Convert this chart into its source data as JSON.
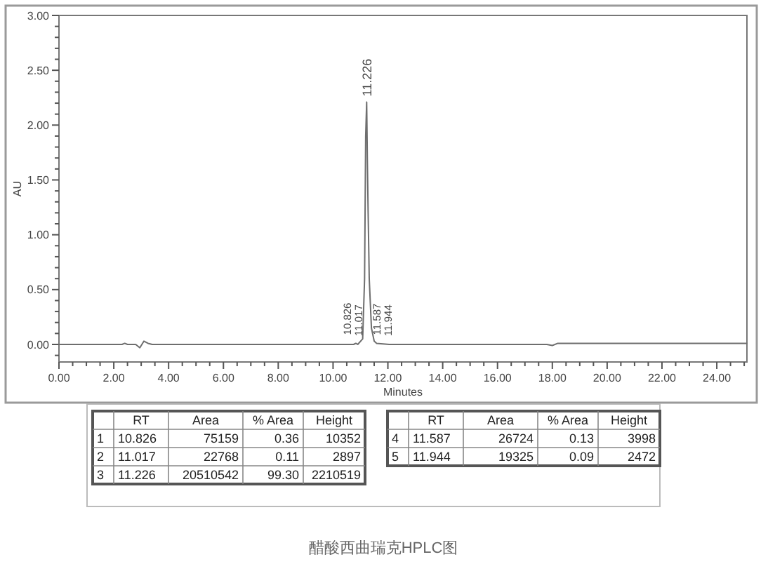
{
  "chart_data": [
    {
      "type": "line",
      "xlabel": "Minutes",
      "ylabel": "AU",
      "x": [
        0,
        2.3,
        2.4,
        2.5,
        2.8,
        2.95,
        3.1,
        3.25,
        3.4,
        10.6,
        10.75,
        10.83,
        10.9,
        11.08,
        11.15,
        11.19,
        11.226,
        11.25,
        11.28,
        11.32,
        11.4,
        11.5,
        11.59,
        12.05,
        17.8,
        18.0,
        18.2,
        25.1
      ],
      "series": [
        {
          "color": "#6e6e6e",
          "values": [
            0,
            0,
            0.01,
            0,
            0,
            -0.03,
            0.03,
            0.01,
            0,
            0,
            0,
            0.01,
            0,
            0.05,
            0.6,
            1.9,
            2.21,
            1.7,
            1.2,
            0.6,
            0.15,
            0.03,
            0.01,
            0,
            0,
            -0.01,
            0.01,
            0.01
          ]
        }
      ],
      "xlim": [
        0,
        25.1
      ],
      "ylim": [
        -0.16,
        3.0
      ],
      "xticks": [
        {
          "value": 0,
          "label": "0.00"
        },
        {
          "value": 0.5,
          "label": null
        },
        {
          "value": 1,
          "label": null
        },
        {
          "value": 1.5,
          "label": null
        },
        {
          "value": 2,
          "label": "2.00"
        },
        {
          "value": 2.5,
          "label": null
        },
        {
          "value": 3,
          "label": null
        },
        {
          "value": 3.5,
          "label": null
        },
        {
          "value": 4,
          "label": "4.00"
        },
        {
          "value": 4.5,
          "label": null
        },
        {
          "value": 5,
          "label": null
        },
        {
          "value": 5.5,
          "label": null
        },
        {
          "value": 6,
          "label": "6.00"
        },
        {
          "value": 6.5,
          "label": null
        },
        {
          "value": 7,
          "label": null
        },
        {
          "value": 7.5,
          "label": null
        },
        {
          "value": 8,
          "label": "8.00"
        },
        {
          "value": 8.5,
          "label": null
        },
        {
          "value": 9,
          "label": null
        },
        {
          "value": 9.5,
          "label": null
        },
        {
          "value": 10,
          "label": "10.00"
        },
        {
          "value": 10.5,
          "label": null
        },
        {
          "value": 11,
          "label": null
        },
        {
          "value": 11.5,
          "label": null
        },
        {
          "value": 12,
          "label": "12.00"
        },
        {
          "value": 12.5,
          "label": null
        },
        {
          "value": 13,
          "label": null
        },
        {
          "value": 13.5,
          "label": null
        },
        {
          "value": 14,
          "label": "14.00"
        },
        {
          "value": 14.5,
          "label": null
        },
        {
          "value": 15,
          "label": null
        },
        {
          "value": 15.5,
          "label": null
        },
        {
          "value": 16,
          "label": "16.00"
        },
        {
          "value": 16.5,
          "label": null
        },
        {
          "value": 17,
          "label": null
        },
        {
          "value": 17.5,
          "label": null
        },
        {
          "value": 18,
          "label": "18.00"
        },
        {
          "value": 18.5,
          "label": null
        },
        {
          "value": 19,
          "label": null
        },
        {
          "value": 19.5,
          "label": null
        },
        {
          "value": 20,
          "label": "20.00"
        },
        {
          "value": 20.5,
          "label": null
        },
        {
          "value": 21,
          "label": null
        },
        {
          "value": 21.5,
          "label": null
        },
        {
          "value": 22,
          "label": "22.00"
        },
        {
          "value": 22.5,
          "label": null
        },
        {
          "value": 23,
          "label": null
        },
        {
          "value": 23.5,
          "label": null
        },
        {
          "value": 24,
          "label": "24.00"
        },
        {
          "value": 24.5,
          "label": null
        },
        {
          "value": 25,
          "label": null
        }
      ],
      "yticks": [
        {
          "value": -0.1,
          "label": null
        },
        {
          "value": 0,
          "label": "0.00"
        },
        {
          "value": 0.1,
          "label": null
        },
        {
          "value": 0.2,
          "label": null
        },
        {
          "value": 0.3,
          "label": null
        },
        {
          "value": 0.4,
          "label": null
        },
        {
          "value": 0.5,
          "label": "0.50"
        },
        {
          "value": 0.6,
          "label": null
        },
        {
          "value": 0.7,
          "label": null
        },
        {
          "value": 0.8,
          "label": null
        },
        {
          "value": 0.9,
          "label": null
        },
        {
          "value": 1,
          "label": "1.00"
        },
        {
          "value": 1.1,
          "label": null
        },
        {
          "value": 1.2,
          "label": null
        },
        {
          "value": 1.3,
          "label": null
        },
        {
          "value": 1.4,
          "label": null
        },
        {
          "value": 1.5,
          "label": "1.50"
        },
        {
          "value": 1.6,
          "label": null
        },
        {
          "value": 1.7,
          "label": null
        },
        {
          "value": 1.8,
          "label": null
        },
        {
          "value": 1.9,
          "label": null
        },
        {
          "value": 2,
          "label": "2.00"
        },
        {
          "value": 2.1,
          "label": null
        },
        {
          "value": 2.2,
          "label": null
        },
        {
          "value": 2.3,
          "label": null
        },
        {
          "value": 2.4,
          "label": null
        },
        {
          "value": 2.5,
          "label": "2.50"
        },
        {
          "value": 2.6,
          "label": null
        },
        {
          "value": 2.7,
          "label": null
        },
        {
          "value": 2.8,
          "label": null
        },
        {
          "value": 2.9,
          "label": null
        },
        {
          "value": 3,
          "label": "3.00"
        }
      ],
      "annotations": [
        {
          "text": "10.826",
          "x": 10.826,
          "y": 0.01
        },
        {
          "text": "11.017",
          "x": 11.017,
          "y": 0
        },
        {
          "text": "11.226",
          "x": 11.226,
          "y": 2.21
        },
        {
          "text": "11.587",
          "x": 11.587,
          "y": 0.01
        },
        {
          "text": "11.944",
          "x": 11.944,
          "y": 0
        },
        "醋酸西曲瑞克HPLC图"
      ]
    },
    {
      "type": "other",
      "data_labels": true,
      "categories": [
        "RT",
        "Area",
        "% Area",
        "Height"
      ],
      "series": [
        {
          "name": "1",
          "values": [
            10.826,
            75159,
            0.36,
            10352
          ]
        },
        {
          "name": "2",
          "values": [
            11.017,
            22768,
            0.11,
            2897
          ]
        },
        {
          "name": "3",
          "values": [
            11.226,
            20510542,
            99.3,
            2210519
          ],
          "value_labels": [
            "11.226",
            "20510542",
            "99.30",
            "2210519"
          ]
        },
        {
          "name": "4",
          "values": [
            11.587,
            26724,
            0.13,
            3998
          ]
        },
        {
          "name": "5",
          "values": [
            11.944,
            19325,
            0.09,
            2472
          ]
        }
      ]
    }
  ]
}
